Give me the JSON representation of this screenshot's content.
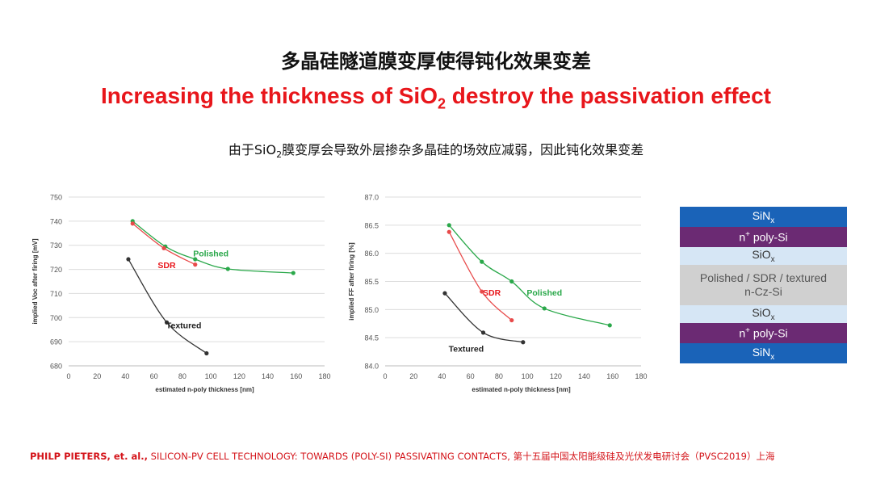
{
  "header": {
    "title_cn": "多晶硅隧道膜变厚使得钝化效果变差",
    "title_en_pre": "Increasing the thickness of SiO",
    "title_en_sub": "2",
    "title_en_post": " destroy the passivation effect",
    "desc_pre": "由于SiO",
    "desc_sub": "2",
    "desc_post": "膜变厚会导致外层掺杂多晶硅的场效应减弱，因此钝化效果变差"
  },
  "chart_data": [
    {
      "type": "line",
      "xlabel": "estimated n-poly thickness [nm]",
      "ylabel": "implied Voc after firing [mV]",
      "xlim": [
        0,
        180
      ],
      "ylim": [
        680,
        750
      ],
      "xticks": [
        0,
        20,
        40,
        60,
        80,
        100,
        120,
        140,
        160,
        180
      ],
      "yticks": [
        680,
        690,
        700,
        710,
        720,
        730,
        740,
        750
      ],
      "grid": true,
      "series": [
        {
          "name": "Polished",
          "color": "#2aa84a",
          "x": [
            45,
            68,
            89,
            112,
            158
          ],
          "y": [
            740,
            729.5,
            724.2,
            720.2,
            718.5
          ]
        },
        {
          "name": "SDR",
          "color": "#e84a4a",
          "x": [
            45,
            67,
            89
          ],
          "y": [
            739,
            728.8,
            722
          ]
        },
        {
          "name": "Textured",
          "color": "#333333",
          "x": [
            42,
            69,
            97
          ],
          "y": [
            724.2,
            698,
            685.2
          ]
        }
      ],
      "annotations": [
        {
          "text": "Polished",
          "x": 100,
          "y": 725.3,
          "color": "#2aa84a"
        },
        {
          "text": "SDR",
          "x": 69,
          "y": 720.5,
          "color": "#e8161b"
        },
        {
          "text": "Textured",
          "x": 81,
          "y": 695.5,
          "color": "#222222"
        }
      ]
    },
    {
      "type": "line",
      "xlabel": "estimated n-poly thickness [nm]",
      "ylabel": "implied FF after firing [%]",
      "xlim": [
        0,
        180
      ],
      "ylim": [
        84.0,
        87.0
      ],
      "xticks": [
        0,
        20,
        40,
        60,
        80,
        100,
        120,
        140,
        160,
        180
      ],
      "yticks": [
        84.0,
        84.5,
        85.0,
        85.5,
        86.0,
        86.5,
        87.0
      ],
      "ytick_labels": [
        "84.0",
        "84.5",
        "85.0",
        "85.5",
        "86.0",
        "86.5",
        "87.0"
      ],
      "grid": true,
      "series": [
        {
          "name": "Polished",
          "color": "#2aa84a",
          "x": [
            45,
            68,
            89,
            112,
            158
          ],
          "y": [
            86.5,
            85.85,
            85.5,
            85.02,
            84.72
          ]
        },
        {
          "name": "SDR",
          "color": "#e84a4a",
          "x": [
            45,
            68,
            89
          ],
          "y": [
            86.38,
            85.32,
            84.81
          ]
        },
        {
          "name": "Textured",
          "color": "#333333",
          "x": [
            42,
            69,
            97
          ],
          "y": [
            85.29,
            84.59,
            84.42
          ]
        }
      ],
      "annotations": [
        {
          "text": "SDR",
          "x": 75,
          "y": 85.25,
          "color": "#e8161b"
        },
        {
          "text": "Polished",
          "x": 112,
          "y": 85.25,
          "color": "#2aa84a"
        },
        {
          "text": "Textured",
          "x": 57,
          "y": 84.25,
          "color": "#222222"
        }
      ]
    }
  ],
  "structure": {
    "layers": [
      {
        "pre": "SiN",
        "sup": "",
        "sub": "x",
        "color": "#1a63b8",
        "text_color": "#ffffff"
      },
      {
        "pre": "n",
        "sup": "+",
        "post": " poly-Si",
        "sub": "",
        "color": "#6b2a73",
        "text_color": "#ffffff"
      },
      {
        "pre": "SiO",
        "sup": "",
        "sub": "x",
        "color": "#d6e6f5",
        "text_color": "#333333"
      },
      {
        "pre": "Polished / SDR / textured",
        "line2": "n-Cz-Si",
        "sup": "",
        "sub": "",
        "color": "#d0d0d0",
        "text_color": "#555555"
      },
      {
        "pre": "SiO",
        "sup": "",
        "sub": "x",
        "color": "#d6e6f5",
        "text_color": "#333333"
      },
      {
        "pre": "n",
        "sup": "+",
        "post": " poly-Si",
        "sub": "",
        "color": "#6b2a73",
        "text_color": "#ffffff"
      },
      {
        "pre": "SiN",
        "sup": "",
        "sub": "x",
        "color": "#1a63b8",
        "text_color": "#ffffff"
      }
    ]
  },
  "citation": {
    "authors": "PHILP PIETERS, et. al.,",
    "text": " SILICON-PV CELL TECHNOLOGY: TOWARDS (POLY-SI) PASSIVATING CONTACTS, 第十五届中国太阳能级硅及光伏发电研讨会（PVSC2019）上海"
  }
}
